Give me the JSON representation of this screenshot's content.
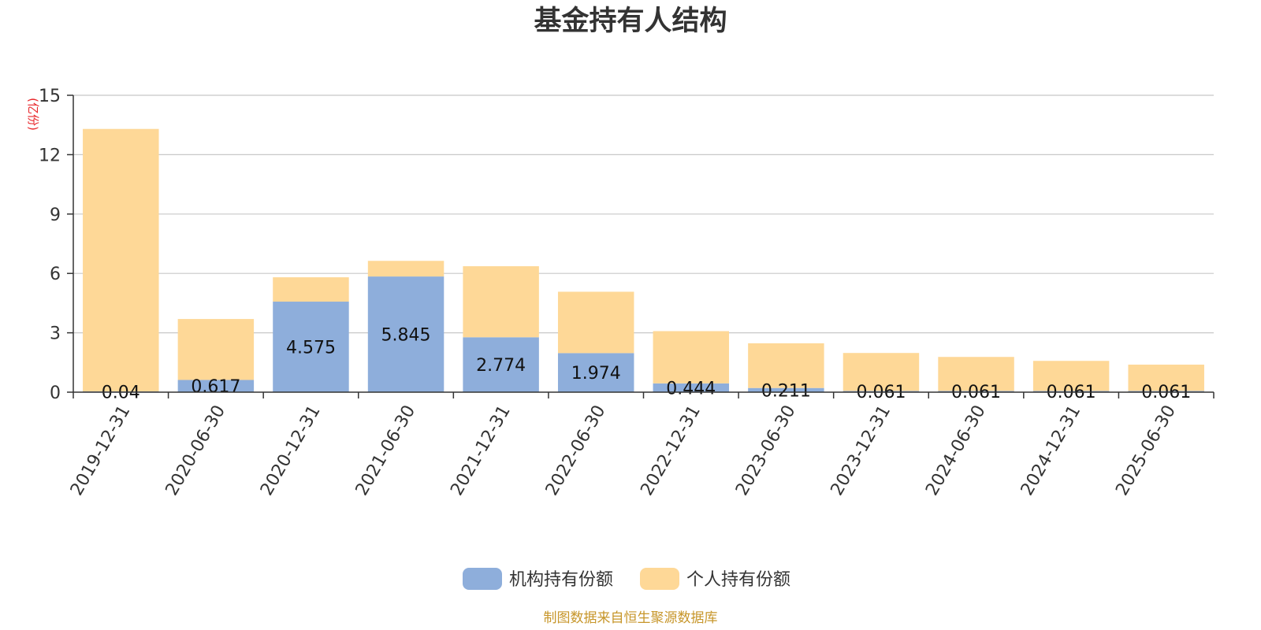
{
  "colors": {
    "institution": "#8eaedb",
    "individual": "#fed897",
    "grid": "#c8c8c8",
    "axis": "#333333",
    "ylabel": "#e8262a",
    "source": "#c7962a"
  },
  "chart_data": {
    "type": "bar",
    "stacked": true,
    "title": "基金持有人结构",
    "ylabel": "(亿份)",
    "xlabel": "",
    "ylim": [
      0,
      15
    ],
    "yticks": [
      "0",
      "3",
      "6",
      "9",
      "12",
      "15"
    ],
    "grid": true,
    "legend_position": "bottom",
    "categories": [
      "2019-12-31",
      "2020-06-30",
      "2020-12-31",
      "2021-06-30",
      "2021-12-31",
      "2022-06-30",
      "2022-12-31",
      "2023-06-30",
      "2023-12-31",
      "2024-06-30",
      "2024-12-31",
      "2025-06-30"
    ],
    "series": [
      {
        "name": "机构持有份额",
        "values": [
          0.04,
          0.617,
          4.575,
          5.845,
          2.774,
          1.974,
          0.444,
          0.211,
          0.061,
          0.061,
          0.061,
          0.061
        ],
        "labels": [
          "0.04",
          "0.617",
          "4.575",
          "5.845",
          "2.774",
          "1.974",
          "0.444",
          "0.211",
          "0.061",
          "0.061",
          "0.061",
          "0.061"
        ]
      },
      {
        "name": "个人持有份额",
        "values": [
          13.26,
          3.08,
          1.23,
          0.79,
          3.59,
          3.1,
          2.64,
          2.26,
          1.92,
          1.72,
          1.52,
          1.33
        ]
      }
    ]
  },
  "source_note": "制图数据来自恒生聚源数据库"
}
